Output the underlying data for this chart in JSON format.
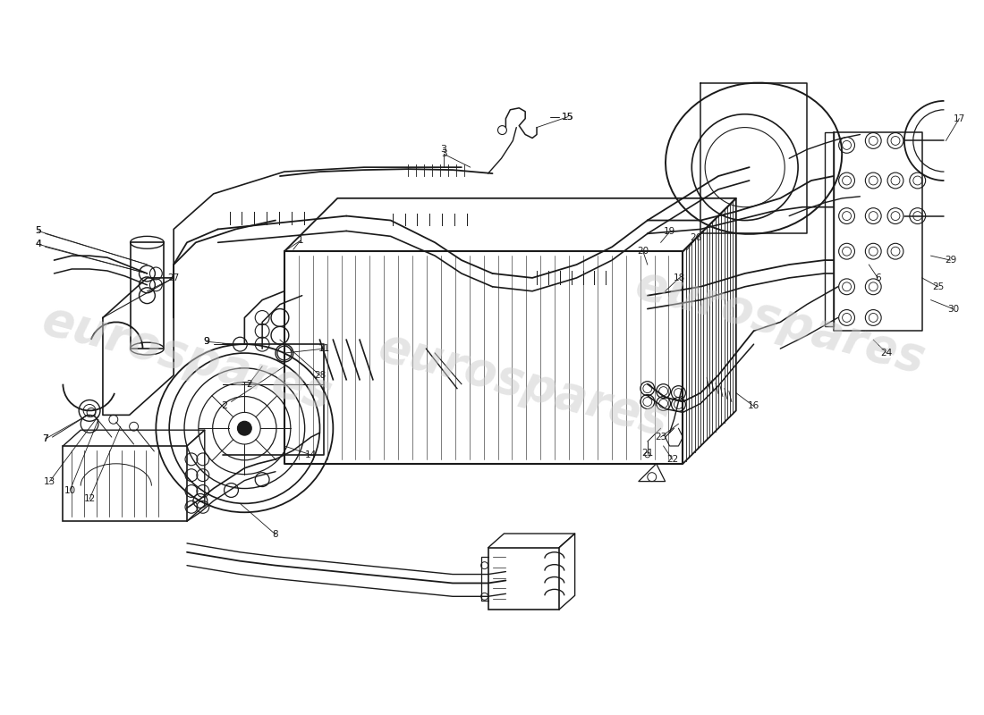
{
  "bg_color": "#ffffff",
  "line_color": "#1a1a1a",
  "watermark_color": "#cccccc",
  "watermark_text": "eurospares",
  "fig_width": 11.0,
  "fig_height": 8.0,
  "dpi": 100
}
